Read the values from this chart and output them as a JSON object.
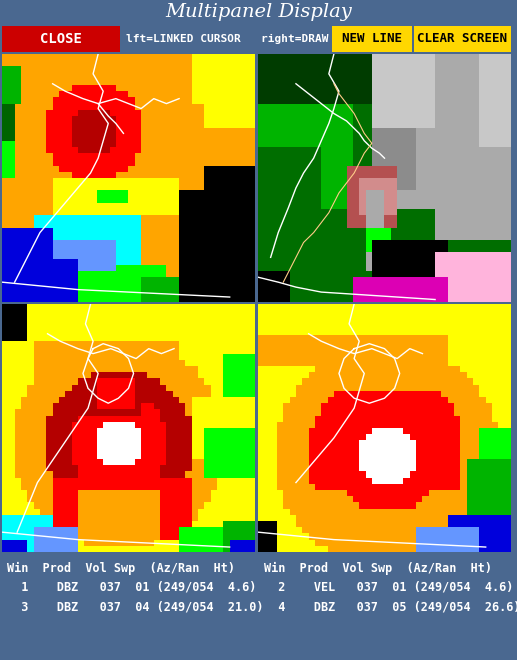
{
  "title": "Multipanel Display",
  "title_bg": "#4a6890",
  "title_fg": "white",
  "toolbar_bg": "black",
  "close_bg": "#cc0000",
  "close_fg": "white",
  "close_text": "CLOSE",
  "middle_text": "lft=LINKED CURSOR   right=DRAW",
  "middle_fg": "white",
  "newline_bg": "#ffd700",
  "newline_fg": "black",
  "newline_text": "NEW LINE",
  "clearscreen_bg": "#ffd700",
  "clearscreen_fg": "black",
  "clearscreen_text": "CLEAR SCREEN",
  "info_bg": "black",
  "info_fg": "white",
  "outer_bg": "#4a6890"
}
